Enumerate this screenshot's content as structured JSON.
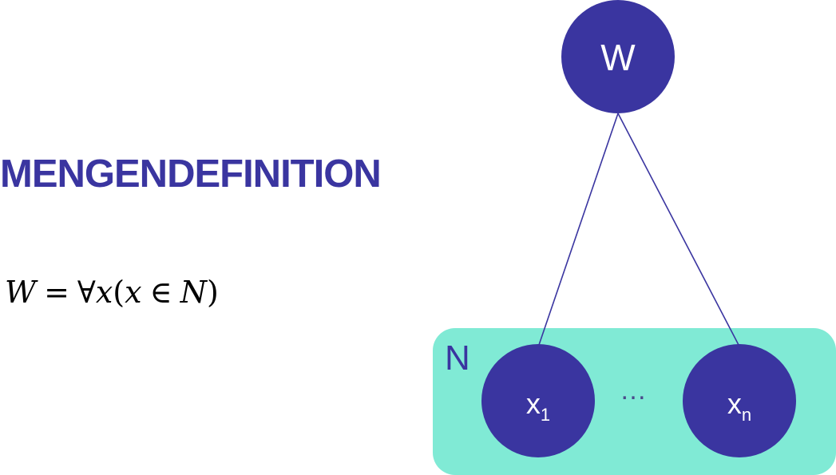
{
  "heading": "MENGENDEFINITION",
  "formula": {
    "lhs": "W",
    "eq": "=",
    "quantifier": "∀",
    "var1": "x",
    "open": "(",
    "var2": "x",
    "member": "∈",
    "set": "N",
    "close": ")"
  },
  "diagram": {
    "root_label": "W",
    "set_label": "N",
    "child_first": {
      "base": "x",
      "sub": "1"
    },
    "ellipsis": "…",
    "child_last": {
      "base": "x",
      "sub": "n"
    }
  },
  "colors": {
    "node_fill": "#3a35a0",
    "set_fill": "#80ead5",
    "heading": "#3a35a0",
    "edge": "#3a35a0"
  }
}
